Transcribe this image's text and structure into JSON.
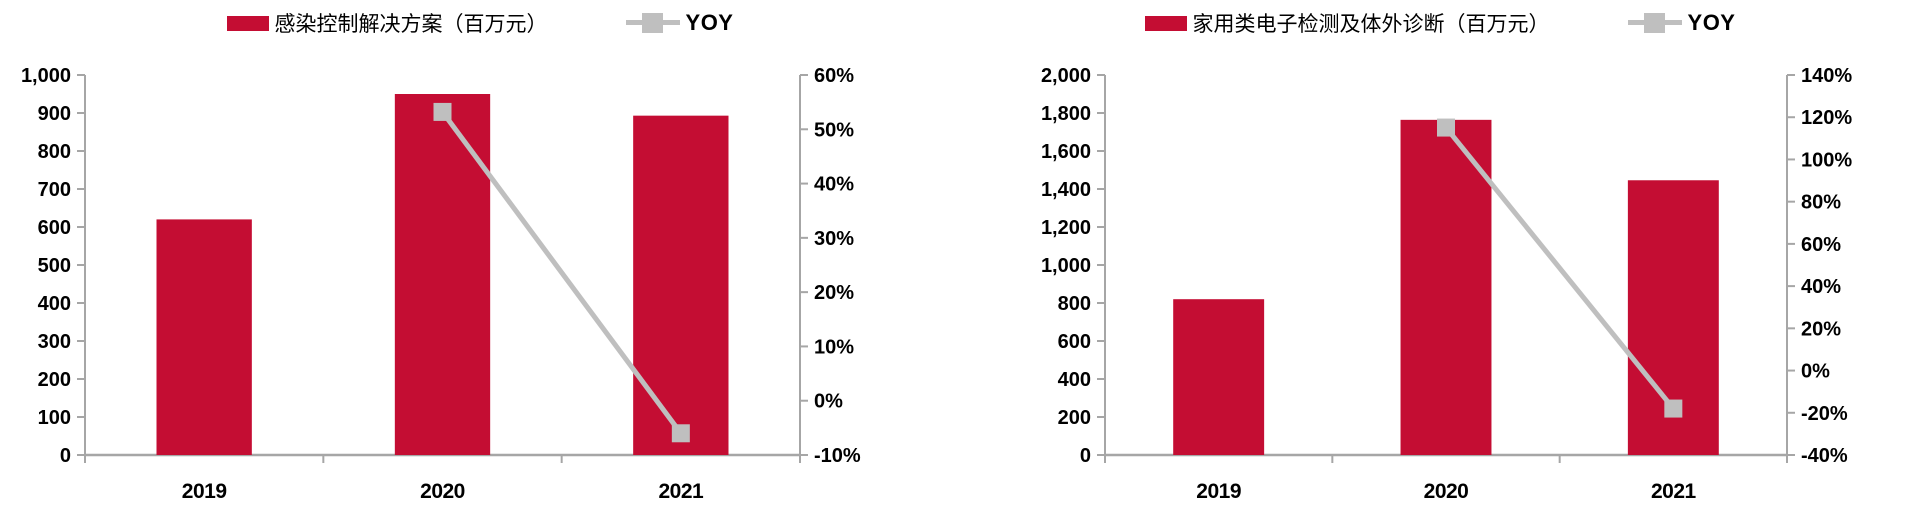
{
  "page": {
    "background": "#FFFFFF"
  },
  "chart_data": [
    {
      "type": "bar",
      "subtype": "bar-line-combo",
      "title": "",
      "legend": {
        "bar_label": "感染控制解决方案（百万元）",
        "line_label": "YOY"
      },
      "legend_position": "top",
      "grid": false,
      "categories": [
        "2019",
        "2020",
        "2021"
      ],
      "series": [
        {
          "name": "感染控制解决方案（百万元）",
          "type": "bar",
          "axis": "left",
          "values": [
            620,
            950,
            893
          ]
        },
        {
          "name": "YOY",
          "type": "line",
          "axis": "right",
          "unit": "%",
          "values": [
            null,
            53.2,
            -6
          ]
        }
      ],
      "left_axis": {
        "min": 0,
        "max": 1000,
        "step": 100,
        "format": "thousands",
        "tick_labels": [
          "0",
          "100",
          "200",
          "300",
          "400",
          "500",
          "600",
          "700",
          "800",
          "900",
          "1,000"
        ]
      },
      "right_axis": {
        "min": -10,
        "max": 60,
        "step": 10,
        "format": "percent",
        "tick_labels": [
          "-10%",
          "0%",
          "10%",
          "20%",
          "30%",
          "40%",
          "50%",
          "60%"
        ]
      },
      "colors": {
        "bar": "#C40D33",
        "line": "#BFBFBF",
        "marker": "#BFBFBF",
        "axis": "#A6A6A6",
        "text": "#000000"
      }
    },
    {
      "type": "bar",
      "subtype": "bar-line-combo",
      "title": "",
      "legend": {
        "bar_label": "家用类电子检测及体外诊断（百万元）",
        "line_label": "YOY"
      },
      "legend_position": "top",
      "grid": false,
      "categories": [
        "2019",
        "2020",
        "2021"
      ],
      "series": [
        {
          "name": "家用类电子检测及体外诊断（百万元）",
          "type": "bar",
          "axis": "left",
          "values": [
            820,
            1764,
            1446
          ]
        },
        {
          "name": "YOY",
          "type": "line",
          "axis": "right",
          "unit": "%",
          "values": [
            null,
            115.1,
            -18
          ]
        }
      ],
      "left_axis": {
        "min": 0,
        "max": 2000,
        "step": 200,
        "format": "thousands",
        "tick_labels": [
          "0",
          "200",
          "400",
          "600",
          "800",
          "1,000",
          "1,200",
          "1,400",
          "1,600",
          "1,800",
          "2,000"
        ]
      },
      "right_axis": {
        "min": -40,
        "max": 140,
        "step": 20,
        "format": "percent",
        "tick_labels": [
          "-40%",
          "-20%",
          "0%",
          "20%",
          "40%",
          "60%",
          "80%",
          "100%",
          "120%",
          "140%"
        ]
      },
      "colors": {
        "bar": "#C40D33",
        "line": "#BFBFBF",
        "marker": "#BFBFBF",
        "axis": "#A6A6A6",
        "text": "#000000"
      }
    }
  ]
}
